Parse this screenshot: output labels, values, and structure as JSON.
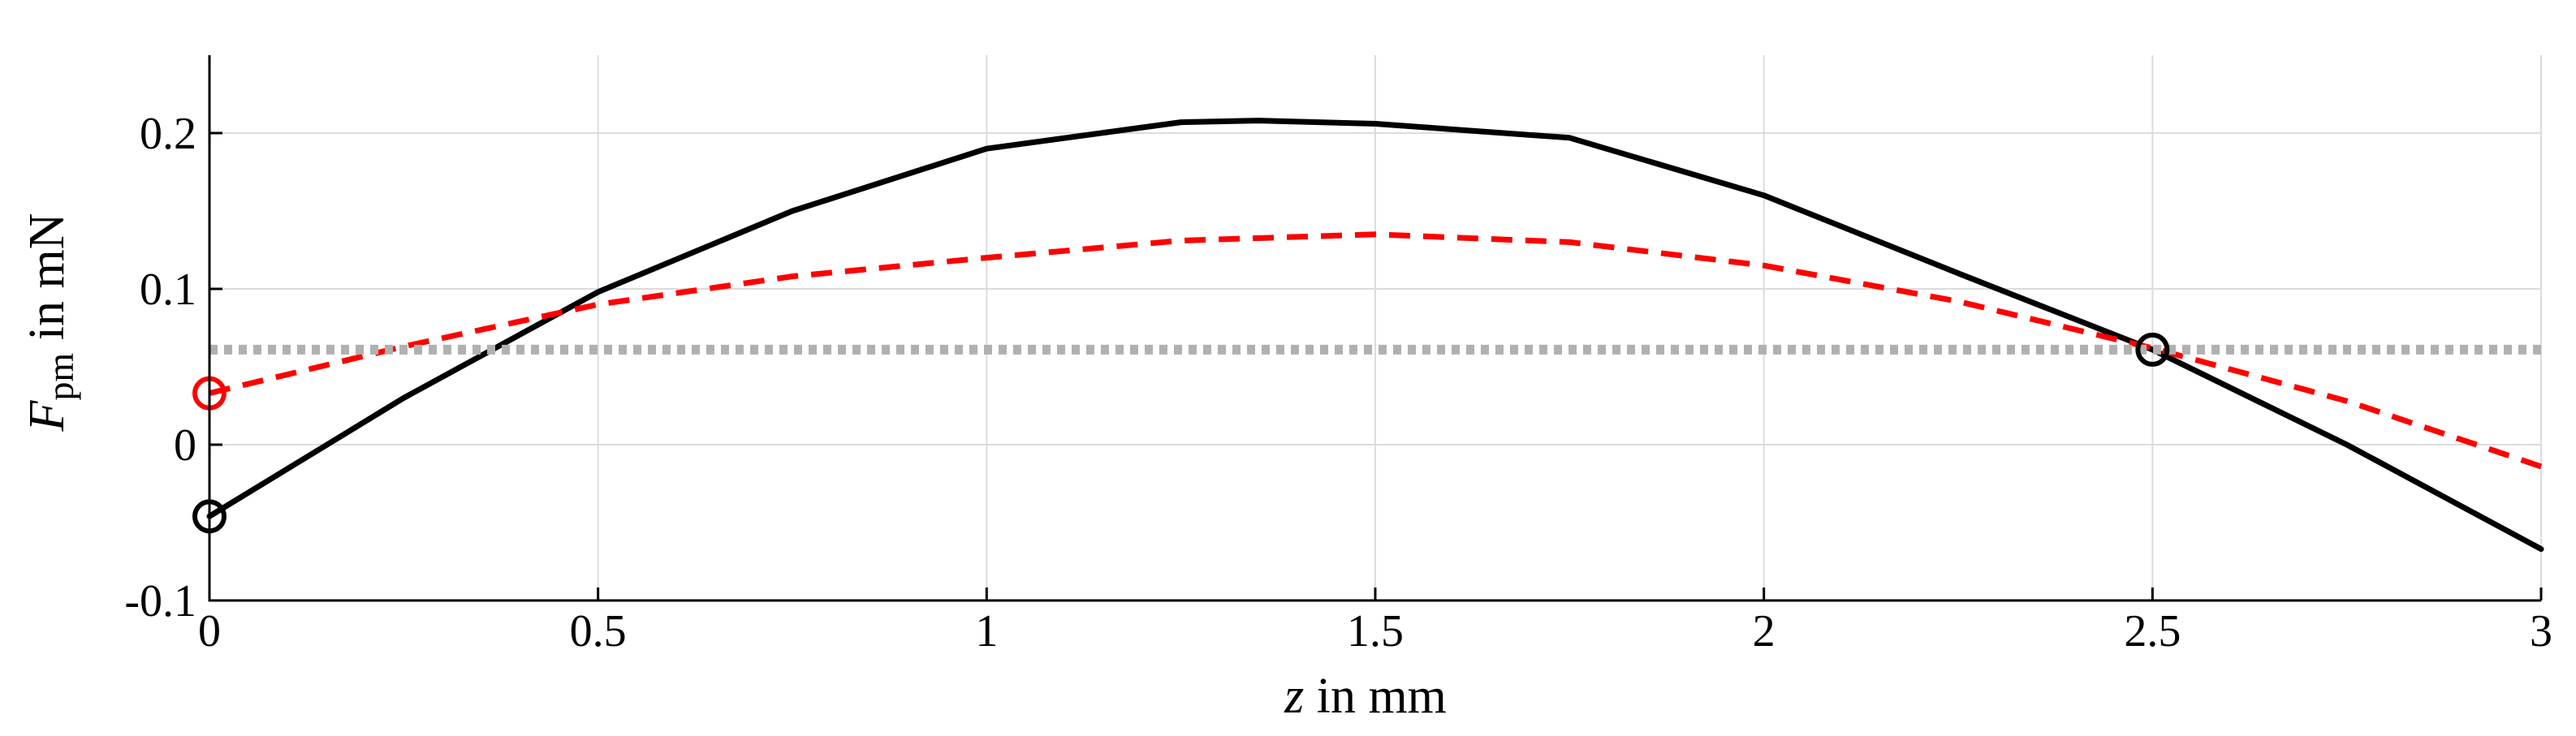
{
  "chart_data": {
    "type": "line",
    "xlabel": {
      "var": "z",
      "rest": " in mm"
    },
    "ylabel": {
      "var": "F",
      "sub": "pm",
      "rest": " in mN"
    },
    "xlim": [
      0,
      3
    ],
    "ylim": [
      -0.1,
      0.25
    ],
    "xticks": [
      0,
      0.5,
      1,
      1.5,
      2,
      2.5,
      3
    ],
    "xtick_labels": [
      "0",
      "0.5",
      "1",
      "1.5",
      "2",
      "2.5",
      "3"
    ],
    "yticks": [
      -0.1,
      0,
      0.1,
      0.2
    ],
    "ytick_labels": [
      "-0.1",
      "0",
      "0.1",
      "0.2"
    ],
    "grid": true,
    "series": [
      {
        "style": "solid",
        "color": "#000000",
        "x": [
          0,
          0.25,
          0.5,
          0.75,
          1.0,
          1.25,
          1.35,
          1.5,
          1.75,
          2.0,
          2.25,
          2.5,
          2.75,
          3.0
        ],
        "y": [
          -0.046,
          0.03,
          0.098,
          0.15,
          0.19,
          0.207,
          0.208,
          0.206,
          0.197,
          0.16,
          0.11,
          0.061,
          0.0,
          -0.067
        ]
      },
      {
        "style": "dashed",
        "color": "#ff0000",
        "x": [
          0,
          0.25,
          0.5,
          0.75,
          1.0,
          1.25,
          1.5,
          1.75,
          2.0,
          2.25,
          2.5,
          2.75,
          3.0
        ],
        "y": [
          0.033,
          0.063,
          0.09,
          0.108,
          0.12,
          0.131,
          0.135,
          0.13,
          0.115,
          0.092,
          0.062,
          0.028,
          -0.014
        ]
      },
      {
        "style": "dotted",
        "color": "#b0b0b0",
        "x": [
          0,
          3
        ],
        "y": [
          0.061,
          0.061
        ]
      }
    ],
    "markers": [
      {
        "x": 0,
        "y": -0.046,
        "color": "#000000"
      },
      {
        "x": 0,
        "y": 0.033,
        "color": "#ff0000"
      },
      {
        "x": 2.5,
        "y": 0.061,
        "color": "#000000"
      }
    ]
  }
}
